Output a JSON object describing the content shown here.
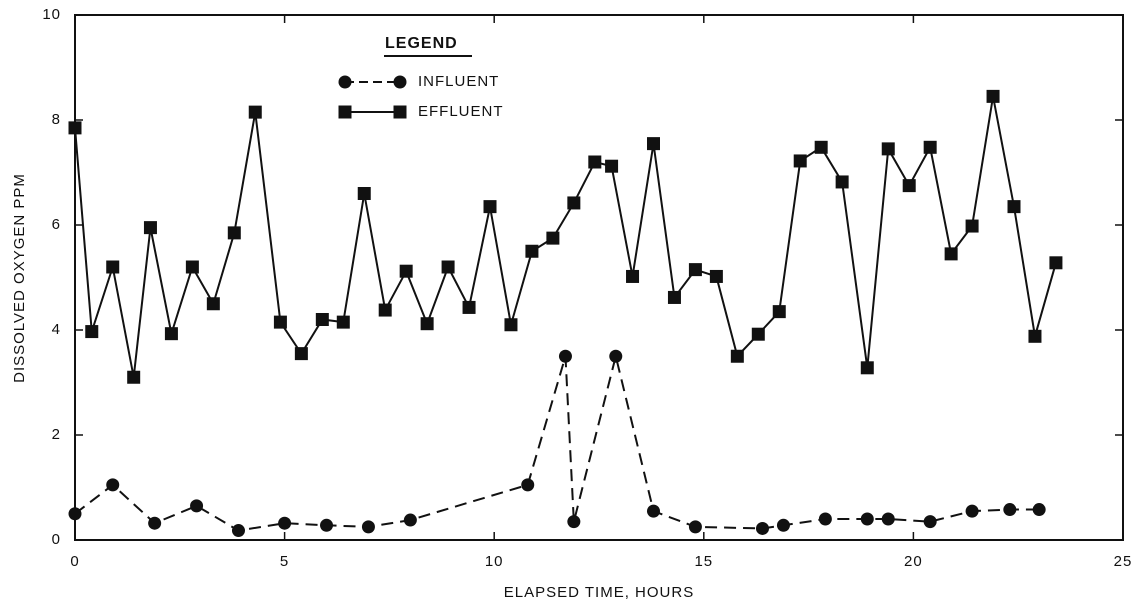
{
  "chart_data": {
    "type": "line",
    "xlabel": "ELAPSED TIME, HOURS",
    "ylabel": "DISSOLVED OXYGEN PPM",
    "legend_title": "LEGEND",
    "xlim": [
      0,
      25
    ],
    "xticks": [
      0,
      5,
      10,
      15,
      20,
      25
    ],
    "ylim": [
      0,
      10
    ],
    "yticks": [
      0,
      2,
      4,
      6,
      8,
      10
    ],
    "grid": false,
    "series": [
      {
        "name": "INFLUENT",
        "color": "#111111",
        "marker": "circle",
        "dash": true,
        "x": [
          0,
          0.9,
          1.9,
          2.9,
          3.9,
          5.0,
          6.0,
          7.0,
          8.0,
          10.8,
          11.7,
          11.9,
          12.9,
          13.8,
          14.8,
          16.4,
          16.9,
          17.9,
          18.9,
          19.4,
          20.4,
          21.4,
          22.3,
          23.0
        ],
        "values": [
          0.5,
          1.05,
          0.32,
          0.65,
          0.18,
          0.32,
          0.28,
          0.25,
          0.38,
          1.05,
          3.5,
          0.35,
          3.5,
          0.55,
          0.25,
          0.22,
          0.28,
          0.4,
          0.4,
          0.4,
          0.35,
          0.55,
          0.58,
          0.58
        ]
      },
      {
        "name": "EFFLUENT",
        "color": "#111111",
        "marker": "square",
        "dash": false,
        "x": [
          0,
          0.4,
          0.9,
          1.4,
          1.8,
          2.3,
          2.8,
          3.3,
          3.8,
          4.3,
          4.9,
          5.4,
          5.9,
          6.4,
          6.9,
          7.4,
          7.9,
          8.4,
          8.9,
          9.4,
          9.9,
          10.4,
          10.9,
          11.4,
          11.9,
          12.4,
          12.8,
          13.3,
          13.8,
          14.3,
          14.8,
          15.3,
          15.8,
          16.3,
          16.8,
          17.3,
          17.8,
          18.3,
          18.9,
          19.4,
          19.9,
          20.4,
          20.9,
          21.4,
          21.9,
          22.4,
          22.9,
          23.4
        ],
        "values": [
          7.85,
          3.97,
          5.2,
          3.1,
          5.95,
          3.93,
          5.2,
          4.5,
          5.85,
          8.15,
          4.15,
          3.55,
          4.2,
          4.15,
          6.6,
          4.38,
          5.12,
          4.12,
          5.2,
          4.43,
          6.35,
          4.1,
          5.5,
          5.75,
          6.42,
          7.2,
          7.12,
          5.02,
          7.55,
          4.62,
          5.15,
          5.02,
          3.5,
          3.92,
          4.35,
          7.22,
          7.48,
          6.82,
          3.28,
          7.45,
          6.75,
          7.48,
          5.45,
          5.98,
          8.45,
          6.35,
          3.88,
          5.28
        ]
      }
    ]
  }
}
